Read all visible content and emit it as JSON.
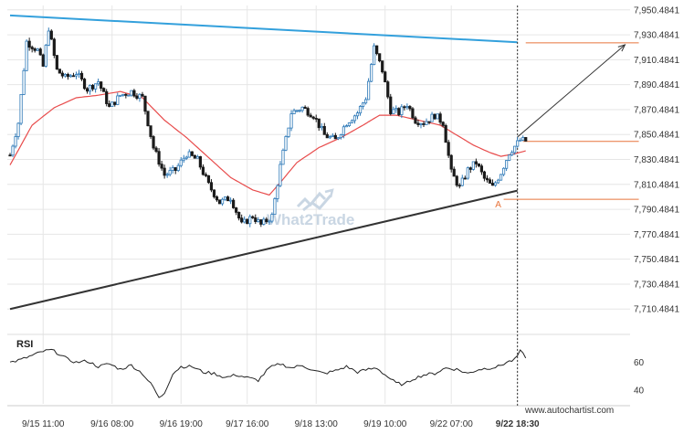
{
  "chart_data": {
    "type": "candlestick",
    "price_axis": {
      "ylim": [
        7696.0,
        7954.0
      ],
      "ticks": [
        "7,950.4841",
        "7,930.4841",
        "7,910.4841",
        "7,890.4841",
        "7,870.4841",
        "7,850.4841",
        "7,830.4841",
        "7,810.4841",
        "7,790.4841",
        "7,770.4841",
        "7,750.4841",
        "7,730.4841",
        "7,710.4841"
      ],
      "tick_values": [
        7950.4841,
        7930.4841,
        7910.4841,
        7890.4841,
        7870.4841,
        7850.4841,
        7830.4841,
        7810.4841,
        7790.4841,
        7770.4841,
        7750.4841,
        7730.4841,
        7710.4841
      ]
    },
    "rsi_axis": {
      "label": "RSI",
      "ticks": [
        "60",
        "40"
      ],
      "tick_values": [
        60,
        40
      ],
      "ylim": [
        30,
        75
      ]
    },
    "time_axis": {
      "ticks": [
        "9/15 11:00",
        "9/16 08:00",
        "9/16 19:00",
        "9/17 16:00",
        "9/18 13:00",
        "9/19 10:00",
        "9/22 07:00",
        "9/22 18:30"
      ],
      "tick_bars": [
        12,
        37,
        62,
        86,
        111,
        136,
        160,
        184
      ]
    },
    "bar_count": 188,
    "candle_anchors": [
      [
        0,
        7834
      ],
      [
        3,
        7860
      ],
      [
        6,
        7925
      ],
      [
        10,
        7918
      ],
      [
        12,
        7905
      ],
      [
        14,
        7936
      ],
      [
        17,
        7902
      ],
      [
        20,
        7896
      ],
      [
        24,
        7900
      ],
      [
        28,
        7887
      ],
      [
        32,
        7893
      ],
      [
        36,
        7872
      ],
      [
        40,
        7882
      ],
      [
        44,
        7885
      ],
      [
        48,
        7880
      ],
      [
        52,
        7840
      ],
      [
        56,
        7818
      ],
      [
        60,
        7822
      ],
      [
        64,
        7835
      ],
      [
        68,
        7830
      ],
      [
        72,
        7810
      ],
      [
        76,
        7796
      ],
      [
        80,
        7800
      ],
      [
        84,
        7778
      ],
      [
        88,
        7785
      ],
      [
        91,
        7778
      ],
      [
        95,
        7785
      ],
      [
        98,
        7825
      ],
      [
        102,
        7868
      ],
      [
        106,
        7872
      ],
      [
        110,
        7866
      ],
      [
        114,
        7850
      ],
      [
        118,
        7846
      ],
      [
        122,
        7860
      ],
      [
        126,
        7868
      ],
      [
        129,
        7880
      ],
      [
        132,
        7920
      ],
      [
        135,
        7902
      ],
      [
        138,
        7870
      ],
      [
        141,
        7868
      ],
      [
        144,
        7875
      ],
      [
        147,
        7862
      ],
      [
        150,
        7860
      ],
      [
        154,
        7866
      ],
      [
        157,
        7860
      ],
      [
        160,
        7820
      ],
      [
        163,
        7808
      ],
      [
        166,
        7822
      ],
      [
        169,
        7828
      ],
      [
        172,
        7815
      ],
      [
        175,
        7808
      ],
      [
        178,
        7820
      ],
      [
        181,
        7836
      ],
      [
        185,
        7846
      ],
      [
        188,
        7845
      ]
    ],
    "ma_anchors": [
      [
        0,
        7826
      ],
      [
        8,
        7858
      ],
      [
        16,
        7872
      ],
      [
        24,
        7880
      ],
      [
        32,
        7882
      ],
      [
        40,
        7885
      ],
      [
        48,
        7880
      ],
      [
        56,
        7862
      ],
      [
        64,
        7848
      ],
      [
        72,
        7832
      ],
      [
        80,
        7816
      ],
      [
        88,
        7806
      ],
      [
        94,
        7802
      ],
      [
        98,
        7812
      ],
      [
        104,
        7828
      ],
      [
        112,
        7840
      ],
      [
        120,
        7848
      ],
      [
        128,
        7858
      ],
      [
        134,
        7866
      ],
      [
        140,
        7866
      ],
      [
        148,
        7862
      ],
      [
        156,
        7858
      ],
      [
        162,
        7850
      ],
      [
        168,
        7842
      ],
      [
        174,
        7836
      ],
      [
        178,
        7833
      ],
      [
        183,
        7835
      ],
      [
        188,
        7838
      ]
    ],
    "rsi_anchors": [
      [
        0,
        60
      ],
      [
        4,
        62
      ],
      [
        8,
        65
      ],
      [
        12,
        68
      ],
      [
        15,
        69
      ],
      [
        18,
        66
      ],
      [
        21,
        62
      ],
      [
        24,
        60
      ],
      [
        28,
        61
      ],
      [
        32,
        57
      ],
      [
        36,
        59
      ],
      [
        40,
        55
      ],
      [
        44,
        58
      ],
      [
        48,
        52
      ],
      [
        52,
        42
      ],
      [
        54,
        34
      ],
      [
        56,
        38
      ],
      [
        59,
        52
      ],
      [
        62,
        57
      ],
      [
        66,
        57
      ],
      [
        70,
        53
      ],
      [
        74,
        52
      ],
      [
        78,
        49
      ],
      [
        82,
        51
      ],
      [
        86,
        49
      ],
      [
        90,
        47
      ],
      [
        94,
        56
      ],
      [
        98,
        59
      ],
      [
        102,
        56
      ],
      [
        106,
        58
      ],
      [
        110,
        54
      ],
      [
        114,
        52
      ],
      [
        118,
        54
      ],
      [
        122,
        57
      ],
      [
        126,
        53
      ],
      [
        130,
        55
      ],
      [
        133,
        56
      ],
      [
        136,
        51
      ],
      [
        140,
        45
      ],
      [
        143,
        44
      ],
      [
        146,
        48
      ],
      [
        150,
        51
      ],
      [
        154,
        52
      ],
      [
        158,
        56
      ],
      [
        162,
        55
      ],
      [
        166,
        52
      ],
      [
        170,
        55
      ],
      [
        174,
        56
      ],
      [
        177,
        57
      ],
      [
        180,
        60
      ],
      [
        183,
        62
      ],
      [
        185,
        68
      ],
      [
        186,
        66
      ],
      [
        188,
        62
      ]
    ],
    "support_line": {
      "from_bar": 0,
      "to_bar": 184,
      "from_price": 7710.5,
      "to_price": 7805.5
    },
    "resistance_line": {
      "from_bar": 0,
      "to_bar": 184,
      "from_price": 7946.0,
      "to_price": 7924.5
    },
    "projection": {
      "from_bar": 184,
      "to_bar": 223,
      "from_price": 7848.5,
      "to_price": 7922.5
    },
    "level_lines": {
      "target": 7924.0,
      "current": 7845.0,
      "low": 7798.5
    },
    "level_line_bars": {
      "target_from": 187,
      "current_from": 186,
      "low_from": 179,
      "to": 228
    },
    "point_label": "A",
    "point_bar": 177,
    "point_price": 7792,
    "vertical_marker_bar": 184,
    "colors": {
      "up": "#2f7ab8",
      "down": "#1a1a1a",
      "ma": "#e84c4c",
      "resistance": "#33a0dc",
      "support": "#333333",
      "projection": "#333333",
      "levels": "#e8743b",
      "grid": "#e6e6e6"
    }
  },
  "watermark": "What2Trade",
  "source": "www.autochartist.com"
}
